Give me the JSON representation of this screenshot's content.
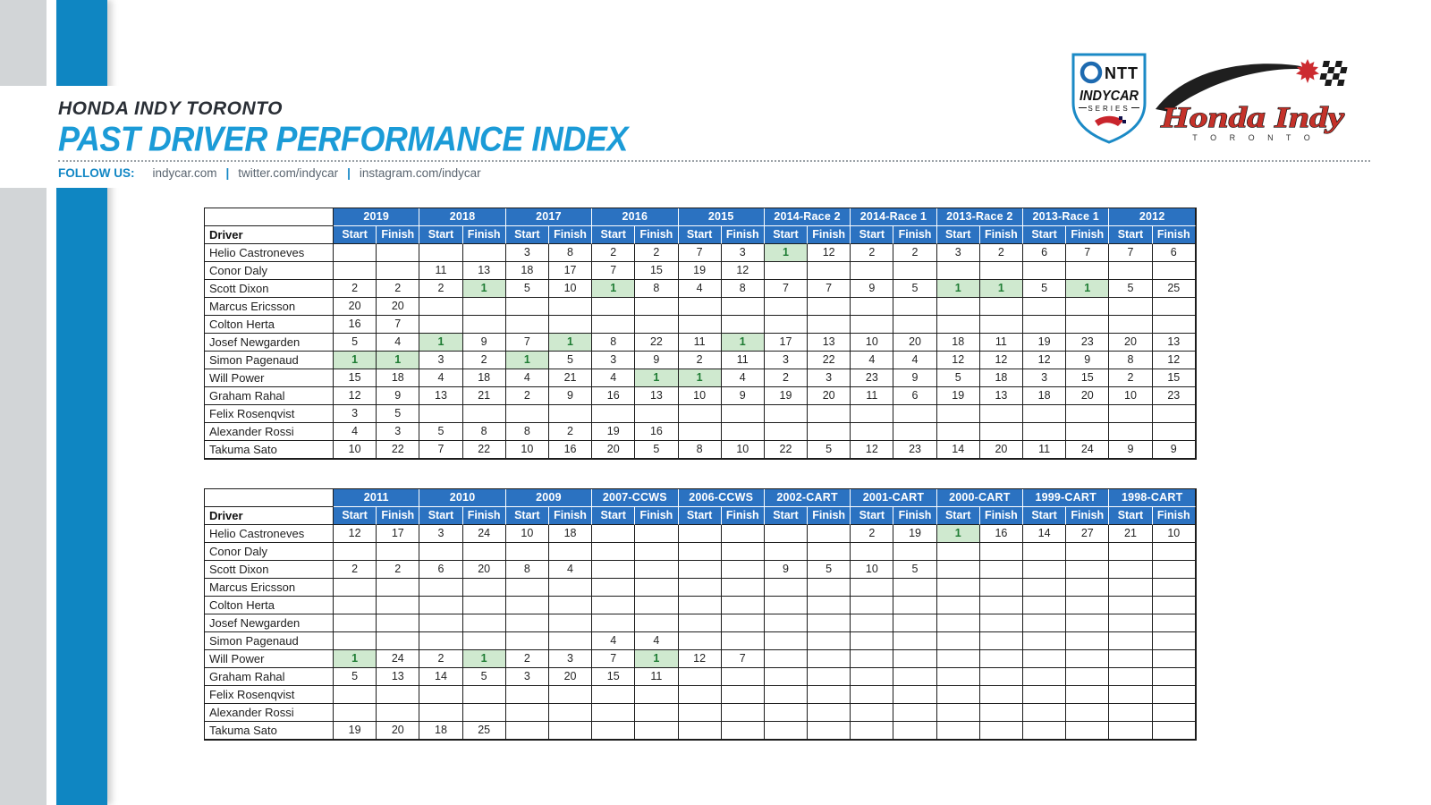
{
  "header": {
    "kicker": "HONDA INDY TORONTO",
    "title": "PAST DRIVER PERFORMANCE INDEX",
    "follow_label": "FOLLOW US:",
    "separator": "|",
    "links": [
      "indycar.com",
      "twitter.com/indycar",
      "instagram.com/indycar"
    ]
  },
  "logos": {
    "indycar": {
      "ntt": "NTT",
      "series": "INDYCAR",
      "series_sub": "SERIES"
    },
    "honda": {
      "name": "Honda Indy",
      "city": "T O R O N T O"
    }
  },
  "colors": {
    "accent_blue": "#1b9bd7",
    "bar_blue": "#0f86c2",
    "bar_gray": "#d2d5d7",
    "table_header_blue": "#2b72c1",
    "first_place_bg": "#cfe9cf",
    "first_place_text": "#1e7c33"
  },
  "tables": [
    {
      "driver_header": "Driver",
      "col_headers": [
        "Start",
        "Finish"
      ],
      "years": [
        "2019",
        "2018",
        "2017",
        "2016",
        "2015",
        "2014-Race 2",
        "2014-Race 1",
        "2013-Race 2",
        "2013-Race 1",
        "2012"
      ],
      "rows": [
        {
          "driver": "Helio Castroneves",
          "cells": [
            "",
            "",
            "",
            "",
            "3",
            "8",
            "2",
            "2",
            "7",
            "3",
            {
              "v": "1",
              "first": true
            },
            "12",
            "2",
            "2",
            "3",
            "2",
            "6",
            "7",
            "7",
            "6"
          ]
        },
        {
          "driver": "Conor Daly",
          "cells": [
            "",
            "",
            "11",
            "13",
            "18",
            "17",
            "7",
            "15",
            "19",
            "12",
            "",
            "",
            "",
            "",
            "",
            "",
            "",
            "",
            "",
            ""
          ]
        },
        {
          "driver": "Scott Dixon",
          "cells": [
            "2",
            "2",
            "2",
            {
              "v": "1",
              "first": true
            },
            "5",
            "10",
            {
              "v": "1",
              "first": true
            },
            "8",
            "4",
            "8",
            "7",
            "7",
            "9",
            "5",
            {
              "v": "1",
              "first": true
            },
            {
              "v": "1",
              "first": true
            },
            "5",
            {
              "v": "1",
              "first": true
            },
            "5",
            "25"
          ]
        },
        {
          "driver": "Marcus Ericsson",
          "cells": [
            "20",
            "20",
            "",
            "",
            "",
            "",
            "",
            "",
            "",
            "",
            "",
            "",
            "",
            "",
            "",
            "",
            "",
            "",
            "",
            ""
          ]
        },
        {
          "driver": "Colton Herta",
          "cells": [
            "16",
            "7",
            "",
            "",
            "",
            "",
            "",
            "",
            "",
            "",
            "",
            "",
            "",
            "",
            "",
            "",
            "",
            "",
            "",
            ""
          ]
        },
        {
          "driver": "Josef Newgarden",
          "cells": [
            "5",
            "4",
            {
              "v": "1",
              "first": true
            },
            "9",
            "7",
            {
              "v": "1",
              "first": true
            },
            "8",
            "22",
            "11",
            {
              "v": "1",
              "first": true
            },
            "17",
            "13",
            "10",
            "20",
            "18",
            "11",
            "19",
            "23",
            "20",
            "13"
          ]
        },
        {
          "driver": "Simon Pagenaud",
          "cells": [
            {
              "v": "1",
              "first": true
            },
            {
              "v": "1",
              "first": true
            },
            "3",
            "2",
            {
              "v": "1",
              "first": true
            },
            "5",
            "3",
            "9",
            "2",
            "11",
            "3",
            "22",
            "4",
            "4",
            "12",
            "12",
            "12",
            "9",
            "8",
            "12"
          ]
        },
        {
          "driver": "Will Power",
          "cells": [
            "15",
            "18",
            "4",
            "18",
            "4",
            "21",
            "4",
            {
              "v": "1",
              "first": true
            },
            {
              "v": "1",
              "first": true
            },
            "4",
            "2",
            "3",
            "23",
            "9",
            "5",
            "18",
            "3",
            "15",
            "2",
            "15"
          ]
        },
        {
          "driver": "Graham Rahal",
          "cells": [
            "12",
            "9",
            "13",
            "21",
            "2",
            "9",
            "16",
            "13",
            "10",
            "9",
            "19",
            "20",
            "11",
            "6",
            "19",
            "13",
            "18",
            "20",
            "10",
            "23"
          ]
        },
        {
          "driver": "Felix Rosenqvist",
          "cells": [
            "3",
            "5",
            "",
            "",
            "",
            "",
            "",
            "",
            "",
            "",
            "",
            "",
            "",
            "",
            "",
            "",
            "",
            "",
            "",
            ""
          ]
        },
        {
          "driver": "Alexander Rossi",
          "cells": [
            "4",
            "3",
            "5",
            "8",
            "8",
            "2",
            "19",
            "16",
            "",
            "",
            "",
            "",
            "",
            "",
            "",
            "",
            "",
            "",
            "",
            ""
          ]
        },
        {
          "driver": "Takuma Sato",
          "cells": [
            "10",
            "22",
            "7",
            "22",
            "10",
            "16",
            "20",
            "5",
            "8",
            "10",
            "22",
            "5",
            "12",
            "23",
            "14",
            "20",
            "11",
            "24",
            "9",
            "9"
          ]
        }
      ]
    },
    {
      "driver_header": "Driver",
      "col_headers": [
        "Start",
        "Finish"
      ],
      "years": [
        "2011",
        "2010",
        "2009",
        "2007-CCWS",
        "2006-CCWS",
        "2002-CART",
        "2001-CART",
        "2000-CART",
        "1999-CART",
        "1998-CART"
      ],
      "rows": [
        {
          "driver": "Helio Castroneves",
          "cells": [
            "12",
            "17",
            "3",
            "24",
            "10",
            "18",
            "",
            "",
            "",
            "",
            "",
            "",
            "2",
            "19",
            {
              "v": "1",
              "first": true
            },
            "16",
            "14",
            "27",
            "21",
            "10"
          ]
        },
        {
          "driver": "Conor Daly",
          "cells": [
            "",
            "",
            "",
            "",
            "",
            "",
            "",
            "",
            "",
            "",
            "",
            "",
            "",
            "",
            "",
            "",
            "",
            "",
            "",
            ""
          ]
        },
        {
          "driver": "Scott Dixon",
          "cells": [
            "2",
            "2",
            "6",
            "20",
            "8",
            "4",
            "",
            "",
            "",
            "",
            "9",
            "5",
            "10",
            "5",
            "",
            "",
            "",
            "",
            "",
            ""
          ]
        },
        {
          "driver": "Marcus Ericsson",
          "cells": [
            "",
            "",
            "",
            "",
            "",
            "",
            "",
            "",
            "",
            "",
            "",
            "",
            "",
            "",
            "",
            "",
            "",
            "",
            "",
            ""
          ]
        },
        {
          "driver": "Colton Herta",
          "cells": [
            "",
            "",
            "",
            "",
            "",
            "",
            "",
            "",
            "",
            "",
            "",
            "",
            "",
            "",
            "",
            "",
            "",
            "",
            "",
            ""
          ]
        },
        {
          "driver": "Josef Newgarden",
          "cells": [
            "",
            "",
            "",
            "",
            "",
            "",
            "",
            "",
            "",
            "",
            "",
            "",
            "",
            "",
            "",
            "",
            "",
            "",
            "",
            ""
          ]
        },
        {
          "driver": "Simon Pagenaud",
          "cells": [
            "",
            "",
            "",
            "",
            "",
            "",
            "4",
            "4",
            "",
            "",
            "",
            "",
            "",
            "",
            "",
            "",
            "",
            "",
            "",
            ""
          ]
        },
        {
          "driver": "Will Power",
          "cells": [
            {
              "v": "1",
              "first": true
            },
            "24",
            "2",
            {
              "v": "1",
              "first": true
            },
            "2",
            "3",
            "7",
            {
              "v": "1",
              "first": true
            },
            "12",
            "7",
            "",
            "",
            "",
            "",
            "",
            "",
            "",
            "",
            "",
            ""
          ]
        },
        {
          "driver": "Graham Rahal",
          "cells": [
            "5",
            "13",
            "14",
            "5",
            "3",
            "20",
            "15",
            "11",
            "",
            "",
            "",
            "",
            "",
            "",
            "",
            "",
            "",
            "",
            "",
            ""
          ]
        },
        {
          "driver": "Felix Rosenqvist",
          "cells": [
            "",
            "",
            "",
            "",
            "",
            "",
            "",
            "",
            "",
            "",
            "",
            "",
            "",
            "",
            "",
            "",
            "",
            "",
            "",
            ""
          ]
        },
        {
          "driver": "Alexander Rossi",
          "cells": [
            "",
            "",
            "",
            "",
            "",
            "",
            "",
            "",
            "",
            "",
            "",
            "",
            "",
            "",
            "",
            "",
            "",
            "",
            "",
            ""
          ]
        },
        {
          "driver": "Takuma Sato",
          "cells": [
            "19",
            "20",
            "18",
            "25",
            "",
            "",
            "",
            "",
            "",
            "",
            "",
            "",
            "",
            "",
            "",
            "",
            "",
            "",
            "",
            ""
          ]
        }
      ]
    }
  ]
}
